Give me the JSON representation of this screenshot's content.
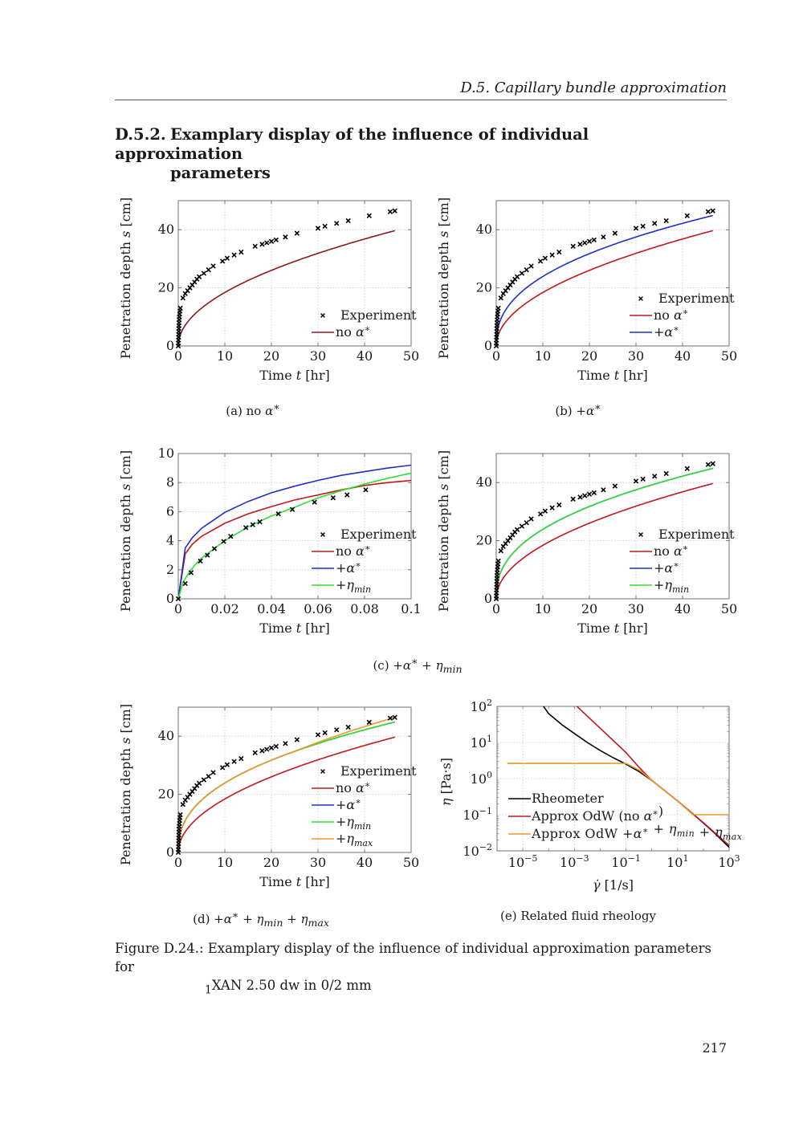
{
  "header": {
    "running_head": "D.5.  Capillary bundle approximation",
    "section_number": "D.5.2.",
    "section_title_line1": "Examplary display of the influence of individual approximation",
    "section_title_line2": "parameters"
  },
  "subcaptions": {
    "a": "(a) no α*",
    "b": "(b) +α*",
    "c": "(c) +α* + ηmin",
    "d": "(d) +α* + ηmin + ηmax",
    "e": "(e) Related fluid rheology"
  },
  "figure_caption": {
    "label": "Figure D.24.:",
    "text_line1": "Examplary display of the influence of individual approximation parameters for",
    "text_line2_sub": "1",
    "text_line2": "XAN 2.50 dw in 0/2 mm"
  },
  "page_number": "217",
  "colors": {
    "experiment": "#000000",
    "no_alpha": "#c0181c",
    "no_alpha_dark": "#8b1a1a",
    "plus_alpha": "#1f2fc8",
    "plus_eta_min": "#33dd33",
    "plus_eta_max": "#f0962a",
    "rheometer": "#000000",
    "grid": "#c8c8c8",
    "axis": "#707070"
  },
  "chart_data": [
    {
      "id": "a",
      "type": "scatter+line",
      "title": "",
      "xlabel": "Time t [hr]",
      "ylabel": "Penetration depth s [cm]",
      "xlim": [
        0,
        50
      ],
      "ylim": [
        0,
        50
      ],
      "xticks": [
        0,
        10,
        20,
        30,
        40,
        50
      ],
      "yticks": [
        0,
        20,
        40
      ],
      "grid": true,
      "legend_position": "bottom-right",
      "series": [
        {
          "name": "Experiment",
          "kind": "marker",
          "color_key": "experiment",
          "source": "experiment_long"
        },
        {
          "name": "no α*",
          "kind": "line",
          "color_key": "no_alpha_dark",
          "model": {
            "coef": 5.82,
            "power": 0.5,
            "t_end": 46.5
          }
        }
      ]
    },
    {
      "id": "b",
      "type": "scatter+line",
      "xlabel": "Time t [hr]",
      "ylabel": "Penetration depth s [cm]",
      "xlim": [
        0,
        50
      ],
      "ylim": [
        0,
        50
      ],
      "xticks": [
        0,
        10,
        20,
        30,
        40,
        50
      ],
      "yticks": [
        0,
        20,
        40
      ],
      "grid": true,
      "legend_position": "bottom-right",
      "series": [
        {
          "name": "Experiment",
          "kind": "marker",
          "color_key": "experiment",
          "source": "experiment_long"
        },
        {
          "name": "no α*",
          "kind": "line",
          "color_key": "no_alpha",
          "model": {
            "coef": 5.82,
            "power": 0.5,
            "t_end": 46.5
          }
        },
        {
          "name": "+α*",
          "kind": "line",
          "color_key": "plus_alpha",
          "model": {
            "coef": 9.3,
            "power": 0.41,
            "t_end": 46.5
          }
        }
      ]
    },
    {
      "id": "c",
      "type": "scatter+line",
      "xlabel": "Time t [hr]",
      "ylabel": "Penetration depth s [cm]",
      "xlim": [
        0,
        0.1
      ],
      "ylim": [
        0,
        10
      ],
      "xticks": [
        0,
        0.02,
        0.04,
        0.06,
        0.08,
        0.1
      ],
      "xticklabels": [
        "0",
        "0.02",
        "0.04",
        "0.06",
        "0.08",
        "0.1"
      ],
      "yticks": [
        0,
        2,
        4,
        6,
        8,
        10
      ],
      "grid": true,
      "legend_position": "bottom-right",
      "series": [
        {
          "name": "Experiment",
          "kind": "marker",
          "color_key": "experiment",
          "source": "experiment_short"
        },
        {
          "name": "no α*",
          "kind": "line",
          "color_key": "no_alpha",
          "points": [
            [
              0,
              0
            ],
            [
              0.003,
              3.1
            ],
            [
              0.006,
              3.75
            ],
            [
              0.01,
              4.3
            ],
            [
              0.02,
              5.2
            ],
            [
              0.03,
              5.85
            ],
            [
              0.04,
              6.35
            ],
            [
              0.05,
              6.8
            ],
            [
              0.06,
              7.15
            ],
            [
              0.07,
              7.5
            ],
            [
              0.08,
              7.8
            ],
            [
              0.09,
              8.0
            ],
            [
              0.1,
              8.15
            ]
          ]
        },
        {
          "name": "+α*",
          "kind": "line",
          "color_key": "plus_alpha",
          "points": [
            [
              0,
              0
            ],
            [
              0.003,
              3.5
            ],
            [
              0.006,
              4.2
            ],
            [
              0.01,
              4.85
            ],
            [
              0.02,
              5.95
            ],
            [
              0.03,
              6.7
            ],
            [
              0.04,
              7.3
            ],
            [
              0.05,
              7.75
            ],
            [
              0.06,
              8.15
            ],
            [
              0.07,
              8.5
            ],
            [
              0.08,
              8.75
            ],
            [
              0.09,
              9.0
            ],
            [
              0.1,
              9.2
            ]
          ]
        },
        {
          "name": "+ηmin",
          "kind": "line",
          "color_key": "plus_eta_min",
          "points": [
            [
              0,
              0
            ],
            [
              0.002,
              1.1
            ],
            [
              0.004,
              1.65
            ],
            [
              0.007,
              2.3
            ],
            [
              0.01,
              2.8
            ],
            [
              0.02,
              4.0
            ],
            [
              0.03,
              4.95
            ],
            [
              0.04,
              5.7
            ],
            [
              0.05,
              6.3
            ],
            [
              0.06,
              6.95
            ],
            [
              0.07,
              7.45
            ],
            [
              0.08,
              7.9
            ],
            [
              0.09,
              8.3
            ],
            [
              0.1,
              8.65
            ]
          ]
        }
      ]
    },
    {
      "id": "c2",
      "type": "scatter+line",
      "xlabel": "Time t [hr]",
      "ylabel": "Penetration depth s [cm]",
      "xlim": [
        0,
        50
      ],
      "ylim": [
        0,
        50
      ],
      "xticks": [
        0,
        10,
        20,
        30,
        40,
        50
      ],
      "yticks": [
        0,
        20,
        40
      ],
      "grid": true,
      "legend_position": "bottom-right",
      "series": [
        {
          "name": "Experiment",
          "kind": "marker",
          "color_key": "experiment",
          "source": "experiment_long"
        },
        {
          "name": "no α*",
          "kind": "line",
          "color_key": "no_alpha",
          "model": {
            "coef": 5.82,
            "power": 0.5,
            "t_end": 46.5
          }
        },
        {
          "name": "+α*",
          "kind": "line",
          "color_key": "plus_alpha",
          "model": {
            "coef": 9.3,
            "power": 0.41,
            "t_end": 46.5
          }
        },
        {
          "name": "+ηmin",
          "kind": "line",
          "color_key": "plus_eta_min",
          "model": {
            "coef": 9.3,
            "power": 0.41,
            "t_end": 46.5
          }
        }
      ]
    },
    {
      "id": "d",
      "type": "scatter+line",
      "xlabel": "Time t [hr]",
      "ylabel": "Penetration depth s [cm]",
      "xlim": [
        0,
        50
      ],
      "ylim": [
        0,
        50
      ],
      "xticks": [
        0,
        10,
        20,
        30,
        40,
        50
      ],
      "yticks": [
        0,
        20,
        40
      ],
      "grid": true,
      "legend_position": "bottom-right",
      "series": [
        {
          "name": "Experiment",
          "kind": "marker",
          "color_key": "experiment",
          "source": "experiment_long"
        },
        {
          "name": "no α*",
          "kind": "line",
          "color_key": "no_alpha",
          "model": {
            "coef": 5.82,
            "power": 0.5,
            "t_end": 46.5
          }
        },
        {
          "name": "+α*",
          "kind": "line",
          "color_key": "plus_alpha",
          "model": {
            "coef": 9.3,
            "power": 0.41,
            "t_end": 46.5
          }
        },
        {
          "name": "+ηmin",
          "kind": "line",
          "color_key": "plus_eta_min",
          "model": {
            "coef": 9.3,
            "power": 0.41,
            "t_end": 46.5
          }
        },
        {
          "name": "+ηmax",
          "kind": "line",
          "color_key": "plus_eta_max",
          "model": {
            "coef": 9.3,
            "power": 0.41,
            "t_end": 46.5,
            "boost_after": 25,
            "boost_end": 1.6
          }
        }
      ]
    },
    {
      "id": "e",
      "type": "line",
      "scale": "log-log",
      "xlabel": "γ̇ [1/s]",
      "ylabel": "η [Pa·s]",
      "xlim_log10": [
        -6,
        3
      ],
      "ylim_log10": [
        -2,
        2
      ],
      "xticks_log10": [
        -5,
        -3,
        -1,
        1,
        3
      ],
      "yticks_log10": [
        -2,
        -1,
        0,
        1,
        2
      ],
      "grid": true,
      "legend_position": "bottom-left",
      "series": [
        {
          "name": "Rheometer",
          "color_key": "rheometer",
          "points_log10": [
            [
              -4.2,
              2
            ],
            [
              -4.0,
              1.8
            ],
            [
              -3.5,
              1.5
            ],
            [
              -3.0,
              1.25
            ],
            [
              -2.5,
              1.0
            ],
            [
              -2.0,
              0.78
            ],
            [
              -1.5,
              0.58
            ],
            [
              -1.0,
              0.4
            ],
            [
              -0.5,
              0.2
            ],
            [
              0,
              -0.05
            ],
            [
              0.5,
              -0.33
            ],
            [
              1,
              -0.62
            ],
            [
              1.5,
              -0.92
            ],
            [
              2,
              -1.23
            ],
            [
              2.5,
              -1.55
            ],
            [
              3,
              -1.9
            ]
          ]
        },
        {
          "name": "Approx OdW (no α*)",
          "color_key": "no_alpha",
          "points_log10": [
            [
              -2.9,
              2
            ],
            [
              -1.0,
              0.72
            ],
            [
              -0.5,
              0.32
            ],
            [
              0,
              -0.05
            ],
            [
              1,
              -0.62
            ],
            [
              2,
              -1.22
            ],
            [
              3,
              -1.85
            ]
          ]
        },
        {
          "name": "Approx OdW +α* + ηmin + ηmax",
          "color_key": "plus_eta_max",
          "points_log10": [
            [
              -5.6,
              0.42
            ],
            [
              -1.0,
              0.42
            ],
            [
              -0.45,
              0.22
            ],
            [
              0,
              -0.05
            ],
            [
              1,
              -0.62
            ],
            [
              1.6,
              -1.0
            ],
            [
              3,
              -1.0
            ]
          ]
        }
      ]
    }
  ],
  "experiment_long": [
    [
      0,
      0
    ],
    [
      0.02,
      1
    ],
    [
      0.04,
      2
    ],
    [
      0.06,
      3
    ],
    [
      0.08,
      4
    ],
    [
      0.1,
      5
    ],
    [
      0.12,
      6
    ],
    [
      0.14,
      7
    ],
    [
      0.16,
      8
    ],
    [
      0.2,
      9
    ],
    [
      0.25,
      10
    ],
    [
      0.3,
      11
    ],
    [
      0.35,
      12
    ],
    [
      0.45,
      13
    ],
    [
      1,
      16.5
    ],
    [
      1.5,
      18
    ],
    [
      2,
      19
    ],
    [
      2.5,
      20
    ],
    [
      3,
      21
    ],
    [
      3.5,
      22
    ],
    [
      4,
      23
    ],
    [
      4.5,
      23.8
    ],
    [
      5.5,
      25
    ],
    [
      6.5,
      26.2
    ],
    [
      7.5,
      27.5
    ],
    [
      9.5,
      29.2
    ],
    [
      10.5,
      30.2
    ],
    [
      12,
      31.3
    ],
    [
      13.5,
      32.3
    ],
    [
      16.5,
      34.3
    ],
    [
      18,
      35
    ],
    [
      19,
      35.5
    ],
    [
      20,
      36
    ],
    [
      21,
      36.5
    ],
    [
      23,
      37.5
    ],
    [
      25.5,
      38.8
    ],
    [
      30,
      40.5
    ],
    [
      31.5,
      41.2
    ],
    [
      34,
      42.2
    ],
    [
      36.5,
      43.1
    ],
    [
      41,
      44.8
    ],
    [
      45.5,
      46.2
    ],
    [
      46.5,
      46.5
    ]
  ],
  "experiment_short": [
    [
      0,
      0
    ],
    [
      0.003,
      1.05
    ],
    [
      0.0055,
      1.8
    ],
    [
      0.0095,
      2.6
    ],
    [
      0.0125,
      3.0
    ],
    [
      0.0155,
      3.45
    ],
    [
      0.0195,
      3.95
    ],
    [
      0.0225,
      4.3
    ],
    [
      0.029,
      4.9
    ],
    [
      0.032,
      5.1
    ],
    [
      0.035,
      5.3
    ],
    [
      0.043,
      5.85
    ],
    [
      0.049,
      6.15
    ],
    [
      0.0585,
      6.65
    ],
    [
      0.0665,
      6.95
    ],
    [
      0.0725,
      7.15
    ],
    [
      0.0805,
      7.5
    ]
  ]
}
